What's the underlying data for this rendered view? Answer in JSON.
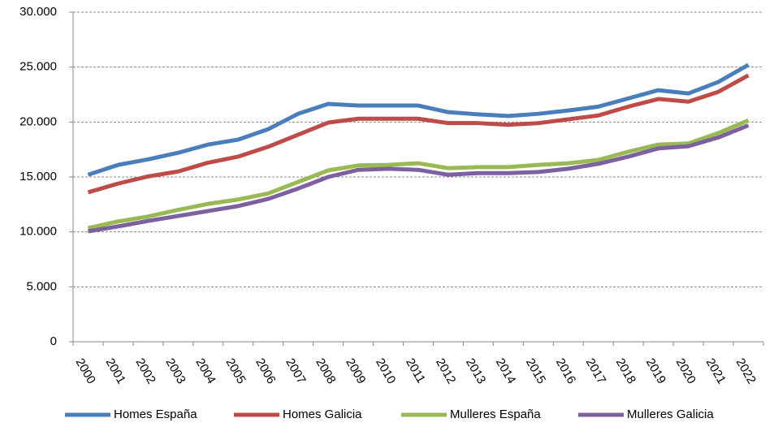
{
  "chart_data": {
    "type": "line",
    "categories": [
      "2000",
      "2001",
      "2002",
      "2003",
      "2004",
      "2005",
      "2006",
      "2007",
      "2008",
      "2009",
      "2010",
      "2011",
      "2012",
      "2013",
      "2014",
      "2015",
      "2016",
      "2017",
      "2018",
      "2019",
      "2020",
      "2021",
      "2022"
    ],
    "series": [
      {
        "name": "Homes España",
        "color": "#4a7ebb",
        "values": [
          15200,
          16100,
          16600,
          17200,
          17950,
          18400,
          19350,
          20750,
          21650,
          21500,
          21500,
          21500,
          20900,
          20700,
          20550,
          20750,
          21050,
          21400,
          22150,
          22900,
          22600,
          23650,
          25200
        ]
      },
      {
        "name": "Homes Galicia",
        "color": "#be4b48",
        "values": [
          13600,
          14400,
          15050,
          15500,
          16300,
          16850,
          17750,
          18850,
          19950,
          20300,
          20300,
          20300,
          19900,
          19900,
          19750,
          19900,
          20250,
          20600,
          21400,
          22100,
          21850,
          22750,
          24250
        ]
      },
      {
        "name": "Mulleres España",
        "color": "#98b954",
        "values": [
          10350,
          10950,
          11400,
          12000,
          12550,
          12950,
          13500,
          14550,
          15600,
          16050,
          16100,
          16250,
          15800,
          15900,
          15900,
          16100,
          16250,
          16550,
          17300,
          17950,
          18050,
          19000,
          20150
        ]
      },
      {
        "name": "Mulleres Galicia",
        "color": "#7d60a0",
        "values": [
          10050,
          10500,
          11000,
          11450,
          11900,
          12350,
          13000,
          13950,
          15000,
          15650,
          15750,
          15650,
          15200,
          15350,
          15350,
          15450,
          15750,
          16200,
          16850,
          17600,
          17800,
          18600,
          19700
        ]
      }
    ],
    "ylim": [
      0,
      30000
    ],
    "yticks": [
      0,
      {
        "value": 5000,
        "label": "5.000"
      },
      {
        "value": 10000,
        "label": "10.000"
      },
      {
        "value": 15000,
        "label": "15.000"
      },
      {
        "value": 20000,
        "label": "20.000"
      },
      {
        "value": 25000,
        "label": "25.000"
      },
      {
        "value": 30000,
        "label": "30.000"
      }
    ],
    "grid": true,
    "legend": "bottom"
  }
}
